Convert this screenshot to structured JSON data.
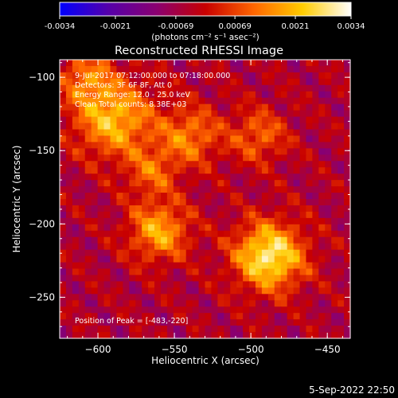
{
  "colorbar": {
    "ticks": [
      "-0.0034",
      "-0.0021",
      "-0.00069",
      "0.00069",
      "0.0021",
      "0.0034"
    ],
    "tick_values": [
      -0.0034,
      -0.0021,
      -0.00069,
      0.00069,
      0.0021,
      0.0034
    ],
    "range": [
      -0.0034,
      0.0034
    ],
    "unit_label": "(photons cm⁻² s⁻¹ asec⁻²)",
    "colormap": [
      "#0000ff",
      "#5500aa",
      "#8a0070",
      "#c80000",
      "#ff6600",
      "#ffcc00",
      "#ffffff"
    ]
  },
  "chart_data": {
    "type": "heatmap",
    "title": "Reconstructed RHESSI Image",
    "xlabel": "Heliocentric X (arcsec)",
    "ylabel": "Heliocentric Y (arcsec)",
    "xlim": [
      -625,
      -435
    ],
    "ylim": [
      -278,
      -88
    ],
    "x_ticks": [
      -600,
      -550,
      -500,
      -450
    ],
    "y_ticks": [
      -100,
      -150,
      -200,
      -250
    ],
    "x_tick_labels": [
      "−600",
      "−550",
      "−500",
      "−450"
    ],
    "y_tick_labels": [
      "−100",
      "−150",
      "−200",
      "−250"
    ],
    "annotations": [
      "9-Jul-2017 07:12:00.000 to 07:18:00.000",
      "Detectors: 3F 6F 8F, Att 0",
      "Energy Range: 12.0 - 25.0 keV",
      "Clean    Total counts: 8.38E+03"
    ],
    "peak_label": "Position of Peak = [-483,-220]",
    "peak": [
      -483,
      -220
    ],
    "sources": [
      {
        "x": -488,
        "y": -222,
        "amp": 0.0034,
        "sigma": 16
      },
      {
        "x": -590,
        "y": -128,
        "amp": 0.0026,
        "sigma": 18
      },
      {
        "x": -560,
        "y": -205,
        "amp": 0.0023,
        "sigma": 14
      },
      {
        "x": -540,
        "y": -140,
        "amp": 0.0018,
        "sigma": 14
      },
      {
        "x": -495,
        "y": -140,
        "amp": 0.0015,
        "sigma": 13
      },
      {
        "x": -608,
        "y": -100,
        "amp": 0.0016,
        "sigma": 12
      },
      {
        "x": -565,
        "y": -165,
        "amp": 0.0014,
        "sigma": 12
      }
    ]
  },
  "footer": {
    "date": "5-Sep-2022 22:50"
  }
}
